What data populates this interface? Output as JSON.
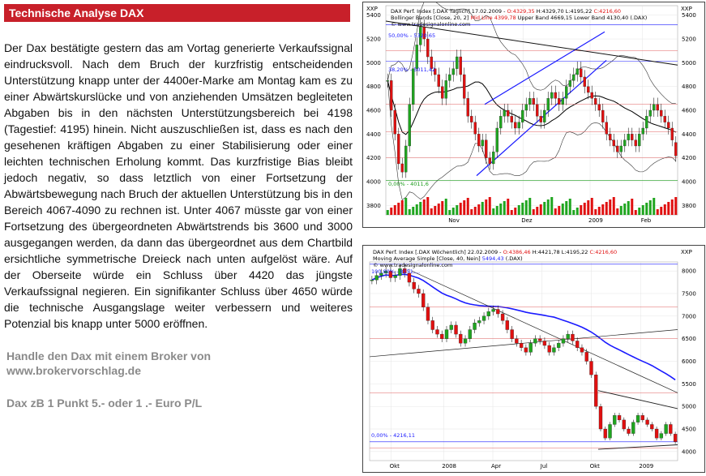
{
  "article": {
    "title": "Technische Analyse DAX",
    "body": "Der Dax bestätigte gestern das am Vortag generierte Verkaufssignal eindrucksvoll. Nach dem Bruch der kurzfristig entscheidenden Unterstützung knapp unter der 4400er-Marke am Montag kam es zu einer Abwärtskurslücke und von anziehenden Umsätzen begleiteten Abgaben bis in den nächsten Unterstützungsbereich bei 4198 (Tagestief: 4195) hinein. Nicht auszuschließen ist, dass es nach den gesehenen kräftigen Abgaben zu einer Stabilisierung oder einer leichten technischen Erholung kommt. Das kurzfristige Bias bleibt jedoch negativ, so dass letztlich von einer Fortsetzung der Abwärtsbewegung nach Bruch der aktuellen Unterstützung bis in den Bereich 4067-4090 zu rechnen ist. Unter 4067 müsste gar von einer Fortsetzung des übergeordneten Abwärtstrends bis 3600 und 3000 ausgegangen werden, da dann das übergeordnet aus dem Chartbild ersichtliche symmetrische Dreieck nach unten aufgelöst wäre. Auf der Oberseite würde ein Schluss über 4420 das jüngste Verkaufssignal negieren. Ein signifikanter Schluss über 4650 würde die technische Ausgangslage weiter verbessern und weiteres Potenzial bis knapp unter 5000 eröffnen.",
    "broker_line1": "Handle den Dax mit einem Broker von",
    "broker_line2": "www.brokervorschlag.de",
    "dax_note": "Dax  zB 1 Punkt  5.- oder 1 .- Euro P/L"
  },
  "colors": {
    "header_bg": "#c8202a",
    "up_candle": "#1fa51f",
    "down_candle": "#e01010",
    "bollinger": "#000000",
    "ma40": "#1a1aff",
    "trend_blue": "#1a1aff"
  },
  "daily_chart": {
    "xxp_label": "XXP",
    "info_line1_prefix": "DAX Perf. Index [.DAX  Täglich] 17.02.2009 - ",
    "info_line1_open": "O:4329,35",
    "info_line1_rest": " H:4329,70 L:4195,22 ",
    "info_line1_close": "C:4216,60",
    "info_line2_prefix": "Bollinger Bands [Close, 20, 2] ",
    "info_line2_mid": "Mid Line 4399,78",
    "info_line2_rest": " Upper Band 4669,15 Lower Band 4130,40 (.DAX)",
    "info_line3": "© www.tradesignalonline.com",
    "fib_top": "50,00% - 5320,65",
    "fib_mid": "38,20% - 5011,42",
    "fib_bottom": "0,00% - 4011,6"
  },
  "weekly_chart": {
    "xxp_label": "XXP",
    "info_line1_prefix": "DAX Perf. Index [.DAX  Wöchentlich] 22.02.2009 - ",
    "info_line1_open": "O:4386,46",
    "info_line1_rest": " H:4421,78 L:4195,22 ",
    "info_line1_close": "C:4216,60",
    "info_line2_prefix": "Moving Average Simple [Close, 40, Nein] ",
    "info_line2_value": "5494,43",
    "info_line2_rest": " (.DAX)",
    "info_line3": "© www.tradesignalonline.com",
    "fib_top": "100,00% - 8151,...",
    "fib_bottom": "0,00% - 4216,11"
  },
  "chart_data": [
    {
      "type": "candlestick",
      "title": "DAX Perf. Index [.DAX Täglich] 17.02.2009",
      "x_ticks": [
        "Nov",
        "Dez",
        "2009",
        "Feb"
      ],
      "y_ticks": [
        3800,
        4000,
        4200,
        4400,
        4600,
        4800,
        5000,
        5200,
        5400
      ],
      "ylim": [
        3720,
        5480
      ],
      "last": {
        "open": 4329.35,
        "high": 4329.7,
        "low": 4195.22,
        "close": 4216.6
      },
      "bollinger": {
        "period": 20,
        "stddev": 2,
        "mid": 4399.78,
        "upper": 4669.15,
        "lower": 4130.4
      },
      "closes": [
        4850,
        4600,
        4400,
        4150,
        4080,
        4300,
        4650,
        4950,
        5150,
        5300,
        5200,
        5050,
        4950,
        4900,
        4800,
        4700,
        4850,
        4900,
        4950,
        5050,
        4900,
        4700,
        4550,
        4500,
        4400,
        4300,
        4350,
        4200,
        4150,
        4250,
        4450,
        4550,
        4600,
        4550,
        4500,
        4450,
        4500,
        4600,
        4650,
        4700,
        4650,
        4550,
        4500,
        4600,
        4700,
        4750,
        4700,
        4650,
        4700,
        4800,
        4850,
        4900,
        4950,
        4880,
        4800,
        4750,
        4700,
        4650,
        4600,
        4500,
        4400,
        4350,
        4300,
        4250,
        4300,
        4350,
        4400,
        4350,
        4300,
        4400,
        4450,
        4550,
        4600,
        4650,
        4600,
        4550,
        4500,
        4450,
        4350,
        4216.6
      ]
    },
    {
      "type": "candlestick",
      "title": "DAX Perf. Index [.DAX Wöchentlich] 22.02.2009",
      "x_ticks": [
        "Okt",
        "2008",
        "Apr",
        "Jul",
        "Okt",
        "2009"
      ],
      "y_ticks": [
        4000,
        4500,
        5000,
        5500,
        6000,
        6500,
        7000,
        7500,
        8000
      ],
      "ylim": [
        3800,
        8200
      ],
      "last": {
        "open": 4386.46,
        "high": 4421.78,
        "low": 4195.22,
        "close": 4216.6
      },
      "moving_average": {
        "type": "simple",
        "period": 40,
        "value": 5494.43
      },
      "closes": [
        7800,
        7900,
        7950,
        8000,
        7850,
        7900,
        8050,
        7950,
        7750,
        7600,
        7500,
        7200,
        6900,
        6700,
        6600,
        6500,
        6700,
        6800,
        6600,
        6400,
        6500,
        6700,
        6850,
        6900,
        7000,
        7100,
        7150,
        7050,
        6900,
        6700,
        6500,
        6400,
        6300,
        6200,
        6400,
        6500,
        6450,
        6350,
        6200,
        6300,
        6400,
        6500,
        6600,
        6450,
        6300,
        6200,
        6000,
        5700,
        5000,
        4500,
        4300,
        4600,
        4800,
        4700,
        4500,
        4400,
        4650,
        4800,
        4700,
        4600,
        4500,
        4300,
        4400,
        4600,
        4400,
        4216.6
      ]
    }
  ]
}
